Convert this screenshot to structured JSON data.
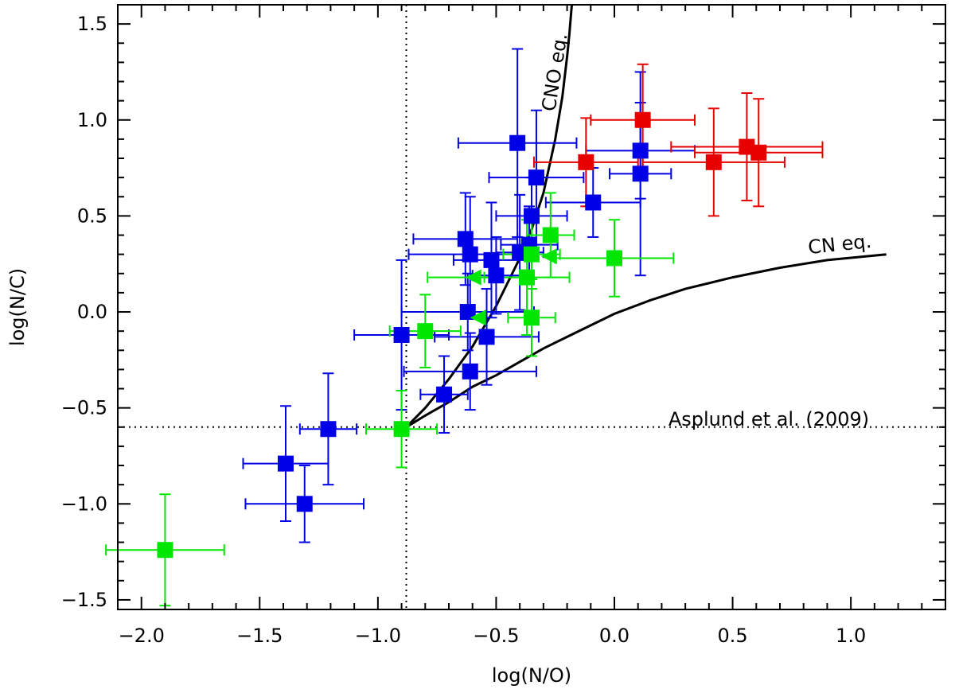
{
  "chart_data": {
    "type": "scatter",
    "xlabel": "log(N/O)",
    "ylabel": "log(N/C)",
    "xlim": [
      -2.1,
      1.4
    ],
    "ylim": [
      -1.55,
      1.6
    ],
    "xticks": [
      -2.0,
      -1.5,
      -1.0,
      -0.5,
      0.0,
      0.5,
      1.0
    ],
    "xtick_labels": [
      "−2.0",
      "−1.5",
      "−1.0",
      "−0.5",
      "0.0",
      "0.5",
      "1.0"
    ],
    "yticks": [
      -1.5,
      -1.0,
      -0.5,
      0.0,
      0.5,
      1.0,
      1.5
    ],
    "ytick_labels": [
      "−1.5",
      "−1.0",
      "−0.5",
      "0.0",
      "0.5",
      "1.0",
      "1.5"
    ],
    "reference_lines": {
      "solar_no": -0.88,
      "solar_nc": -0.6,
      "solar_label": "Asplund et al. (2009)"
    },
    "curves": [
      {
        "name": "CNO eq.",
        "label": "CNO eq.",
        "x": [
          -0.88,
          -0.8,
          -0.7,
          -0.6,
          -0.5,
          -0.4,
          -0.35,
          -0.3,
          -0.25,
          -0.22,
          -0.2,
          -0.19,
          -0.18
        ],
        "y": [
          -0.6,
          -0.5,
          -0.35,
          -0.18,
          0.03,
          0.28,
          0.43,
          0.62,
          0.9,
          1.12,
          1.33,
          1.45,
          1.6
        ]
      },
      {
        "name": "CN eq.",
        "label": "CN eq.",
        "x": [
          -0.88,
          -0.8,
          -0.7,
          -0.6,
          -0.5,
          -0.4,
          -0.3,
          -0.2,
          -0.1,
          0.0,
          0.15,
          0.3,
          0.5,
          0.7,
          0.9,
          1.15
        ],
        "y": [
          -0.6,
          -0.54,
          -0.47,
          -0.39,
          -0.33,
          -0.26,
          -0.19,
          -0.13,
          -0.07,
          -0.01,
          0.06,
          0.12,
          0.18,
          0.23,
          0.27,
          0.3
        ]
      }
    ],
    "series": [
      {
        "name": "blue",
        "color": "#0000e6",
        "marker": "square",
        "points": [
          {
            "x": -1.39,
            "y": -0.79,
            "xerr": 0.18,
            "yerr": 0.3
          },
          {
            "x": -1.31,
            "y": -1.0,
            "xerr": 0.25,
            "yerr": 0.2
          },
          {
            "x": -1.21,
            "y": -0.61,
            "xerr": 0.12,
            "yerr": 0.29
          },
          {
            "x": -0.9,
            "y": -0.12,
            "xerr": 0.2,
            "yerr": 0.39
          },
          {
            "x": -0.72,
            "y": -0.43,
            "xerr": 0.1,
            "yerr": 0.2
          },
          {
            "x": -0.62,
            "y": 0.0,
            "xerr": 0.28,
            "yerr": 0.2
          },
          {
            "x": -0.61,
            "y": -0.31,
            "xerr": 0.28,
            "yerr": 0.2
          },
          {
            "x": -0.54,
            "y": -0.13,
            "xerr": 0.22,
            "yerr": 0.25
          },
          {
            "x": -0.52,
            "y": 0.27,
            "xerr": 0.16,
            "yerr": 0.3
          },
          {
            "x": -0.63,
            "y": 0.38,
            "xerr": 0.22,
            "yerr": 0.24
          },
          {
            "x": -0.61,
            "y": 0.3,
            "xerr": 0.26,
            "yerr": 0.3
          },
          {
            "x": -0.5,
            "y": 0.19,
            "xerr": 0.1,
            "yerr": 0.2
          },
          {
            "x": -0.4,
            "y": 0.31,
            "xerr": 0.1,
            "yerr": 0.3
          },
          {
            "x": -0.36,
            "y": 0.35,
            "xerr": 0.12,
            "yerr": 0.2
          },
          {
            "x": -0.35,
            "y": 0.5,
            "xerr": 0.15,
            "yerr": 0.2
          },
          {
            "x": -0.41,
            "y": 0.88,
            "xerr": 0.25,
            "yerr": 0.49
          },
          {
            "x": -0.33,
            "y": 0.7,
            "xerr": 0.2,
            "yerr": 0.35
          },
          {
            "x": -0.09,
            "y": 0.57,
            "xerr": 0.2,
            "yerr": 0.18
          },
          {
            "x": 0.11,
            "y": 0.84,
            "xerr": 0.23,
            "yerr": 0.25
          },
          {
            "x": 0.11,
            "y": 0.72,
            "xerr": 0.13,
            "yerr": 0.53
          }
        ]
      },
      {
        "name": "green",
        "color": "#00e600",
        "marker": "square",
        "points": [
          {
            "x": -1.9,
            "y": -1.24,
            "xerr": 0.25,
            "yerr": 0.29
          },
          {
            "x": -0.9,
            "y": -0.61,
            "xerr": 0.15,
            "yerr": 0.2
          },
          {
            "x": -0.8,
            "y": -0.1,
            "xerr": 0.15,
            "yerr": 0.19
          },
          {
            "x": -0.37,
            "y": 0.18,
            "xerr": 0.18,
            "yerr": 0.3
          },
          {
            "x": -0.35,
            "y": 0.3,
            "xerr": 0.12,
            "yerr": 0.18
          },
          {
            "x": -0.35,
            "y": -0.03,
            "xerr": 0.1,
            "yerr": 0.2
          },
          {
            "x": -0.27,
            "y": 0.4,
            "xerr": 0.1,
            "yerr": 0.22
          },
          {
            "x": 0.0,
            "y": 0.28,
            "xerr": 0.25,
            "yerr": 0.2
          }
        ]
      },
      {
        "name": "green-upper-limit",
        "color": "#00e600",
        "marker": "left-triangle",
        "points": [
          {
            "x": -0.59,
            "y": 0.18,
            "xerr": 0.2,
            "yerr": 0
          },
          {
            "x": -0.57,
            "y": -0.03,
            "xerr": 0.0,
            "yerr": 0
          },
          {
            "x": -0.27,
            "y": 0.29,
            "xerr": 0.0,
            "yerr": 0
          }
        ]
      },
      {
        "name": "red",
        "color": "#e60000",
        "marker": "square",
        "points": [
          {
            "x": 0.12,
            "y": 1.0,
            "xerr": 0.22,
            "yerr": 0.29
          },
          {
            "x": -0.12,
            "y": 0.78,
            "xerr": 0.22,
            "yerr": 0.23
          },
          {
            "x": 0.42,
            "y": 0.78,
            "xerr": 0.3,
            "yerr": 0.28
          },
          {
            "x": 0.56,
            "y": 0.86,
            "xerr": 0.32,
            "yerr": 0.28
          },
          {
            "x": 0.61,
            "y": 0.83,
            "xerr": 0.27,
            "yerr": 0.28
          }
        ]
      }
    ]
  }
}
